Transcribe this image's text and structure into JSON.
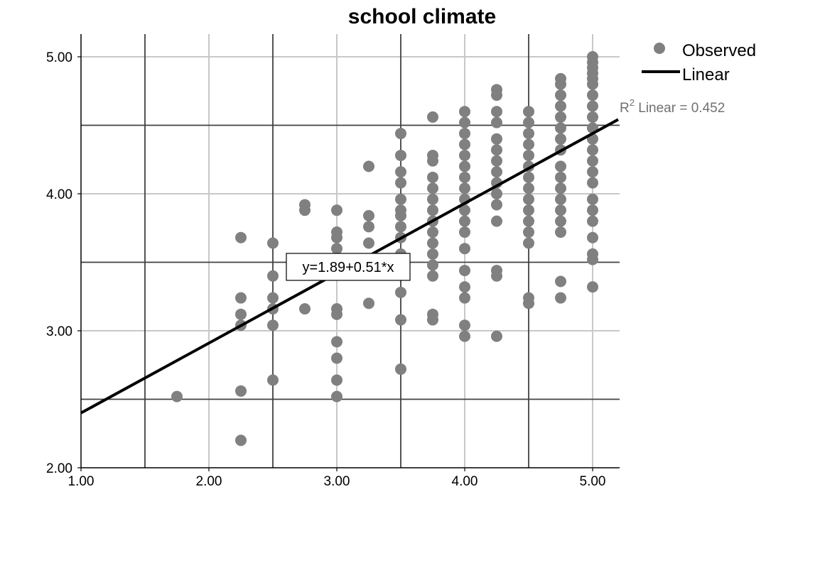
{
  "chart_data": {
    "type": "scatter",
    "title": "school climate",
    "xlabel": "",
    "ylabel": "",
    "xlim": [
      1.0,
      5.2
    ],
    "ylim": [
      2.0,
      5.15
    ],
    "x_ticks": [
      1.0,
      2.0,
      3.0,
      4.0,
      5.0
    ],
    "x_tick_labels": [
      "1.00",
      "2.00",
      "3.00",
      "4.00",
      "5.00"
    ],
    "y_ticks": [
      2.0,
      3.0,
      4.0,
      5.0
    ],
    "y_tick_labels": [
      "2.00",
      "3.00",
      "4.00",
      "5.00"
    ],
    "x_gridlines_light": [
      2.0,
      3.0,
      4.0,
      5.0
    ],
    "x_gridlines_dark": [
      1.5,
      2.5,
      3.5,
      4.5
    ],
    "y_gridlines_light": [
      3.0,
      4.0,
      5.0
    ],
    "y_gridlines_dark": [
      2.5,
      3.5,
      4.5
    ],
    "legend": {
      "position": "top-right",
      "observed_label": "Observed",
      "linear_label": "Linear"
    },
    "r2_annotation": {
      "prefix": "R",
      "sup": "2",
      "text": " Linear = 0.452",
      "value": 0.452
    },
    "fit": {
      "equation_label": "y=1.89+0.51*x",
      "intercept": 1.89,
      "slope": 0.51,
      "x_range": [
        1.0,
        5.2
      ]
    },
    "colors": {
      "points": "#808080",
      "fit_line": "#000000",
      "grid_light": "#c8c8c8",
      "grid_dark": "#404040",
      "r2_text": "#707070"
    },
    "series": [
      {
        "name": "Observed",
        "points": [
          [
            1.75,
            2.52
          ],
          [
            2.25,
            3.68
          ],
          [
            2.25,
            3.24
          ],
          [
            2.25,
            3.12
          ],
          [
            2.25,
            3.04
          ],
          [
            2.25,
            2.56
          ],
          [
            2.25,
            2.2
          ],
          [
            2.5,
            3.64
          ],
          [
            2.5,
            3.4
          ],
          [
            2.5,
            3.24
          ],
          [
            2.5,
            3.16
          ],
          [
            2.5,
            3.04
          ],
          [
            2.5,
            2.64
          ],
          [
            2.75,
            3.92
          ],
          [
            2.75,
            3.88
          ],
          [
            2.75,
            3.16
          ],
          [
            3.0,
            3.88
          ],
          [
            3.0,
            3.72
          ],
          [
            3.0,
            3.68
          ],
          [
            3.0,
            3.6
          ],
          [
            3.0,
            3.16
          ],
          [
            3.0,
            3.12
          ],
          [
            3.0,
            2.92
          ],
          [
            3.0,
            2.8
          ],
          [
            3.0,
            2.64
          ],
          [
            3.0,
            2.52
          ],
          [
            3.25,
            4.2
          ],
          [
            3.25,
            3.84
          ],
          [
            3.25,
            3.76
          ],
          [
            3.25,
            3.64
          ],
          [
            3.25,
            3.2
          ],
          [
            3.5,
            4.44
          ],
          [
            3.5,
            4.28
          ],
          [
            3.5,
            4.16
          ],
          [
            3.5,
            4.08
          ],
          [
            3.5,
            3.96
          ],
          [
            3.5,
            3.88
          ],
          [
            3.5,
            3.84
          ],
          [
            3.5,
            3.76
          ],
          [
            3.5,
            3.68
          ],
          [
            3.5,
            3.56
          ],
          [
            3.5,
            3.28
          ],
          [
            3.5,
            3.08
          ],
          [
            3.5,
            2.72
          ],
          [
            3.75,
            4.56
          ],
          [
            3.75,
            4.28
          ],
          [
            3.75,
            4.24
          ],
          [
            3.75,
            4.12
          ],
          [
            3.75,
            4.04
          ],
          [
            3.75,
            3.96
          ],
          [
            3.75,
            3.88
          ],
          [
            3.75,
            3.8
          ],
          [
            3.75,
            3.72
          ],
          [
            3.75,
            3.64
          ],
          [
            3.75,
            3.56
          ],
          [
            3.75,
            3.48
          ],
          [
            3.75,
            3.4
          ],
          [
            3.75,
            3.12
          ],
          [
            3.75,
            3.08
          ],
          [
            4.0,
            4.6
          ],
          [
            4.0,
            4.52
          ],
          [
            4.0,
            4.44
          ],
          [
            4.0,
            4.36
          ],
          [
            4.0,
            4.28
          ],
          [
            4.0,
            4.2
          ],
          [
            4.0,
            4.12
          ],
          [
            4.0,
            4.04
          ],
          [
            4.0,
            3.96
          ],
          [
            4.0,
            3.88
          ],
          [
            4.0,
            3.8
          ],
          [
            4.0,
            3.72
          ],
          [
            4.0,
            3.6
          ],
          [
            4.0,
            3.44
          ],
          [
            4.0,
            3.32
          ],
          [
            4.0,
            3.24
          ],
          [
            4.0,
            3.04
          ],
          [
            4.0,
            2.96
          ],
          [
            4.25,
            4.76
          ],
          [
            4.25,
            4.72
          ],
          [
            4.25,
            4.6
          ],
          [
            4.25,
            4.52
          ],
          [
            4.25,
            4.4
          ],
          [
            4.25,
            4.32
          ],
          [
            4.25,
            4.24
          ],
          [
            4.25,
            4.16
          ],
          [
            4.25,
            4.08
          ],
          [
            4.25,
            4.0
          ],
          [
            4.25,
            3.92
          ],
          [
            4.25,
            3.8
          ],
          [
            4.25,
            3.44
          ],
          [
            4.25,
            3.4
          ],
          [
            4.25,
            2.96
          ],
          [
            4.5,
            4.6
          ],
          [
            4.5,
            4.52
          ],
          [
            4.5,
            4.44
          ],
          [
            4.5,
            4.36
          ],
          [
            4.5,
            4.28
          ],
          [
            4.5,
            4.2
          ],
          [
            4.5,
            4.12
          ],
          [
            4.5,
            4.04
          ],
          [
            4.5,
            3.96
          ],
          [
            4.5,
            3.88
          ],
          [
            4.5,
            3.8
          ],
          [
            4.5,
            3.72
          ],
          [
            4.5,
            3.64
          ],
          [
            4.5,
            3.24
          ],
          [
            4.5,
            3.2
          ],
          [
            4.75,
            4.84
          ],
          [
            4.75,
            4.8
          ],
          [
            4.75,
            4.72
          ],
          [
            4.75,
            4.64
          ],
          [
            4.75,
            4.56
          ],
          [
            4.75,
            4.48
          ],
          [
            4.75,
            4.4
          ],
          [
            4.75,
            4.32
          ],
          [
            4.75,
            4.2
          ],
          [
            4.75,
            4.12
          ],
          [
            4.75,
            4.04
          ],
          [
            4.75,
            3.96
          ],
          [
            4.75,
            3.88
          ],
          [
            4.75,
            3.8
          ],
          [
            4.75,
            3.72
          ],
          [
            4.75,
            3.36
          ],
          [
            4.75,
            3.24
          ],
          [
            5.0,
            5.0
          ],
          [
            5.0,
            4.96
          ],
          [
            5.0,
            4.92
          ],
          [
            5.0,
            4.88
          ],
          [
            5.0,
            4.84
          ],
          [
            5.0,
            4.8
          ],
          [
            5.0,
            4.72
          ],
          [
            5.0,
            4.64
          ],
          [
            5.0,
            4.56
          ],
          [
            5.0,
            4.48
          ],
          [
            5.0,
            4.4
          ],
          [
            5.0,
            4.32
          ],
          [
            5.0,
            4.24
          ],
          [
            5.0,
            4.16
          ],
          [
            5.0,
            4.08
          ],
          [
            5.0,
            3.96
          ],
          [
            5.0,
            3.88
          ],
          [
            5.0,
            3.8
          ],
          [
            5.0,
            3.68
          ],
          [
            5.0,
            3.56
          ],
          [
            5.0,
            3.52
          ],
          [
            5.0,
            3.32
          ]
        ]
      }
    ]
  }
}
